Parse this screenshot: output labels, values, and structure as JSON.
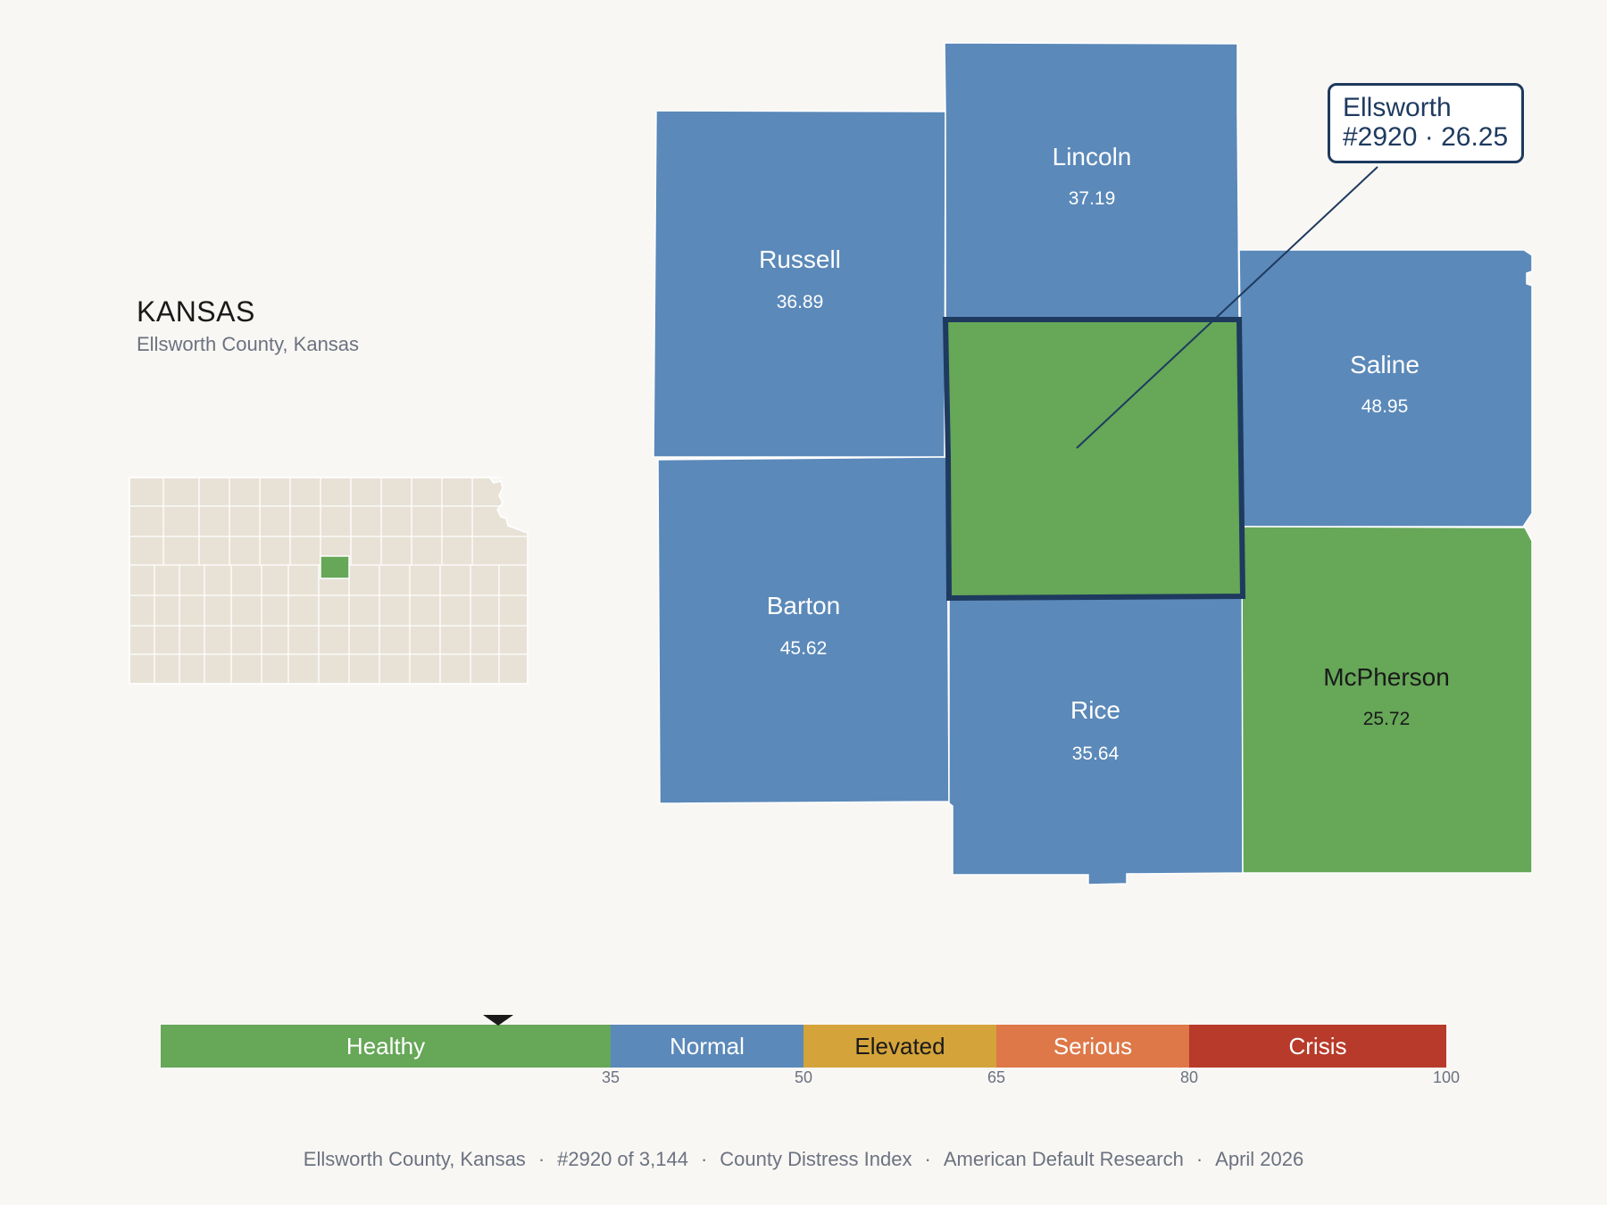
{
  "header": {
    "state": "KANSAS",
    "subtitle": "Ellsworth County, Kansas"
  },
  "colors": {
    "healthy": "#66a758",
    "normal": "#5b89b9",
    "elevated": "#d4a33a",
    "serious": "#de7848",
    "crisis": "#b83a2a",
    "highlight_border": "#1e3a5f",
    "locator_fill": "#e8e2d6",
    "background": "#f9f7f4"
  },
  "counties": [
    {
      "id": "russell",
      "name": "Russell",
      "value": "36.89",
      "band": "normal"
    },
    {
      "id": "lincoln",
      "name": "Lincoln",
      "value": "37.19",
      "band": "normal"
    },
    {
      "id": "saline",
      "name": "Saline",
      "value": "48.95",
      "band": "normal"
    },
    {
      "id": "barton",
      "name": "Barton",
      "value": "45.62",
      "band": "normal"
    },
    {
      "id": "rice",
      "name": "Rice",
      "value": "35.64",
      "band": "normal"
    },
    {
      "id": "mcpherson",
      "name": "McPherson",
      "value": "25.72",
      "band": "healthy"
    },
    {
      "id": "ellsworth",
      "name": "Ellsworth",
      "value": "26.25",
      "band": "healthy",
      "selected": true
    }
  ],
  "callout": {
    "line1": "Ellsworth",
    "line2": "#2920 · 26.25"
  },
  "legend": {
    "segments": [
      {
        "label": "Healthy",
        "band": "healthy",
        "from": 0,
        "to": 35
      },
      {
        "label": "Normal",
        "band": "normal",
        "from": 35,
        "to": 50
      },
      {
        "label": "Elevated",
        "band": "elevated",
        "from": 50,
        "to": 65
      },
      {
        "label": "Serious",
        "band": "serious",
        "from": 65,
        "to": 80
      },
      {
        "label": "Crisis",
        "band": "crisis",
        "from": 80,
        "to": 100
      }
    ],
    "ticks": [
      "35",
      "50",
      "65",
      "80",
      "100"
    ],
    "marker_value": 26.25
  },
  "footer": {
    "county": "Ellsworth County, Kansas",
    "rank": "#2920 of 3,144",
    "index": "County Distress Index",
    "source": "American Default Research",
    "date": "April 2026"
  }
}
